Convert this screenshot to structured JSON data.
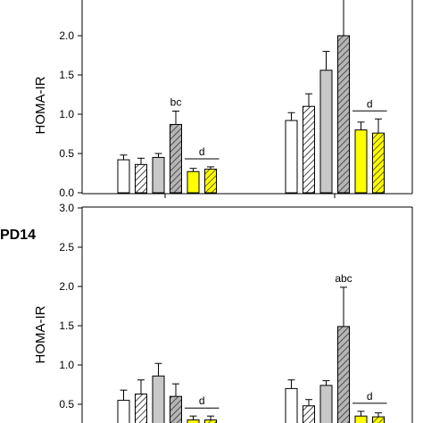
{
  "colors": {
    "white": "#ffffff",
    "gray": "#c8c8c8",
    "yellow": "#ffff00",
    "hatch_gray": "#9e9e9e",
    "stroke": "#000000"
  },
  "chart_data": [
    {
      "type": "bar",
      "panel_label": "",
      "ylabel": "HOMA-IR",
      "ylim": [
        0,
        3.0
      ],
      "yticks": [
        "0.0",
        "0.5",
        "1.0",
        "1.5",
        "2.0"
      ],
      "groups": [
        {
          "bars": [
            {
              "value": 0.42,
              "error": 0.06,
              "style": "white"
            },
            {
              "value": 0.36,
              "error": 0.08,
              "style": "white-hatch"
            },
            {
              "value": 0.45,
              "error": 0.05,
              "style": "gray"
            },
            {
              "value": 0.87,
              "error": 0.17,
              "style": "gray-hatch"
            },
            {
              "value": 0.27,
              "error": 0.04,
              "style": "yellow"
            },
            {
              "value": 0.3,
              "error": 0.03,
              "style": "yellow-hatch"
            }
          ],
          "annotations": [
            {
              "text": "bc",
              "bar": 3,
              "type": "label"
            },
            {
              "text": "d",
              "bars": [
                4,
                5
              ],
              "type": "bracket"
            }
          ]
        },
        {
          "bars": [
            {
              "value": 0.92,
              "error": 0.1,
              "style": "white"
            },
            {
              "value": 1.1,
              "error": 0.16,
              "style": "white-hatch"
            },
            {
              "value": 1.56,
              "error": 0.24,
              "style": "gray"
            },
            {
              "value": 2.0,
              "error": 1.0,
              "style": "gray-hatch"
            },
            {
              "value": 0.8,
              "error": 0.1,
              "style": "yellow"
            },
            {
              "value": 0.76,
              "error": 0.18,
              "style": "yellow-hatch"
            }
          ],
          "annotations": [
            {
              "text": "d",
              "bars": [
                4,
                5
              ],
              "type": "bracket"
            }
          ]
        }
      ]
    },
    {
      "type": "bar",
      "panel_label": "PD14",
      "ylabel": "HOMA-IR",
      "ylim": [
        0,
        3.0
      ],
      "yticks": [
        "0.5",
        "1.0",
        "1.5",
        "2.0",
        "2.5",
        "3.0"
      ],
      "groups": [
        {
          "bars": [
            {
              "value": 0.55,
              "error": 0.13,
              "style": "white"
            },
            {
              "value": 0.63,
              "error": 0.18,
              "style": "white-hatch"
            },
            {
              "value": 0.86,
              "error": 0.16,
              "style": "gray"
            },
            {
              "value": 0.6,
              "error": 0.16,
              "style": "gray-hatch"
            },
            {
              "value": 0.3,
              "error": 0.05,
              "style": "yellow"
            },
            {
              "value": 0.3,
              "error": 0.05,
              "style": "yellow-hatch"
            }
          ],
          "annotations": [
            {
              "text": "d",
              "bars": [
                4,
                5
              ],
              "type": "bracket"
            }
          ]
        },
        {
          "bars": [
            {
              "value": 0.7,
              "error": 0.11,
              "style": "white"
            },
            {
              "value": 0.48,
              "error": 0.08,
              "style": "white-hatch"
            },
            {
              "value": 0.74,
              "error": 0.06,
              "style": "gray"
            },
            {
              "value": 1.49,
              "error": 0.5,
              "style": "gray-hatch"
            },
            {
              "value": 0.35,
              "error": 0.06,
              "style": "yellow"
            },
            {
              "value": 0.34,
              "error": 0.05,
              "style": "yellow-hatch"
            }
          ],
          "annotations": [
            {
              "text": "abc",
              "bar": 3,
              "type": "label"
            },
            {
              "text": "d",
              "bars": [
                4,
                5
              ],
              "type": "bracket"
            }
          ]
        }
      ]
    }
  ]
}
